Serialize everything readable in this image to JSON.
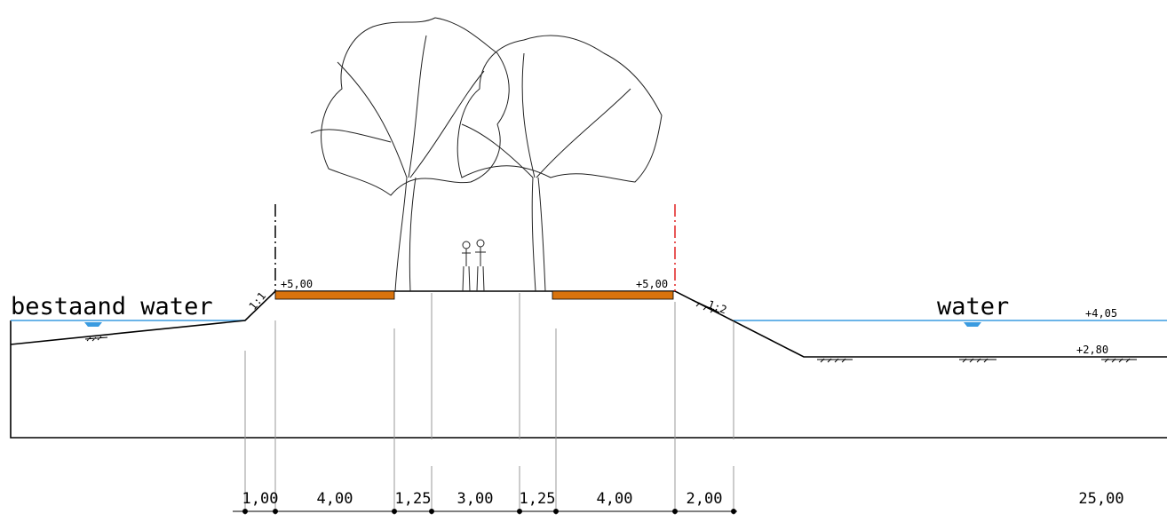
{
  "labels": {
    "left_water": "bestaand water",
    "right_water": "water",
    "level_left": "+5,00",
    "level_right": "+5,00",
    "water_level": "+4,05",
    "bed_level": "+2,80",
    "slope_left": "1:1",
    "slope_right": "1:2"
  },
  "dimensions": [
    "1,00",
    "4,00",
    "1,25",
    "3,00",
    "1,25",
    "4,00",
    "2,00",
    "25,00"
  ]
}
